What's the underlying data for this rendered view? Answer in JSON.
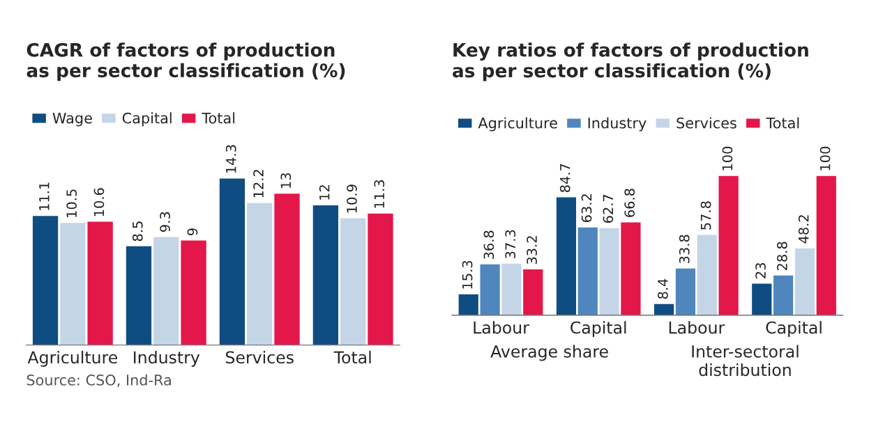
{
  "chart_data": [
    {
      "type": "bar",
      "title": "CAGR of factors of production\nas per sector classification (%)",
      "categories": [
        "Agriculture",
        "Industry",
        "Services",
        "Total"
      ],
      "series": [
        {
          "name": "Wage",
          "color": "#0f4c81",
          "values": [
            11.1,
            8.5,
            14.3,
            12
          ]
        },
        {
          "name": "Capital",
          "color": "#c5d5e8",
          "values": [
            10.5,
            9.3,
            12.2,
            10.9
          ]
        },
        {
          "name": "Total",
          "color": "#e3174a",
          "values": [
            10.6,
            9,
            13,
            11.3
          ]
        }
      ],
      "data_labels": true,
      "legend": "top left",
      "annotations": [
        "Source: CSO, Ind-Ra"
      ]
    },
    {
      "type": "bar",
      "title": "Key ratios of factors of production\nas per sector classification (%)",
      "categories": [
        "Labour",
        "Capital",
        "Labour",
        "Capital"
      ],
      "series": [
        {
          "name": "Agriculture",
          "color": "#0f4c81",
          "values": [
            15.3,
            84.7,
            8.4,
            23
          ]
        },
        {
          "name": "Industry",
          "color": "#4f86bd",
          "values": [
            36.8,
            63.2,
            33.8,
            28.8
          ]
        },
        {
          "name": "Services",
          "color": "#c5d5e8",
          "values": [
            37.3,
            62.7,
            57.8,
            48.2
          ]
        },
        {
          "name": "Total",
          "color": "#e3174a",
          "values": [
            33.2,
            66.8,
            100,
            100
          ]
        }
      ],
      "data_labels": true,
      "legend": "top left",
      "annotations": [
        "Average share",
        "Inter-sectoral distribution"
      ]
    }
  ]
}
